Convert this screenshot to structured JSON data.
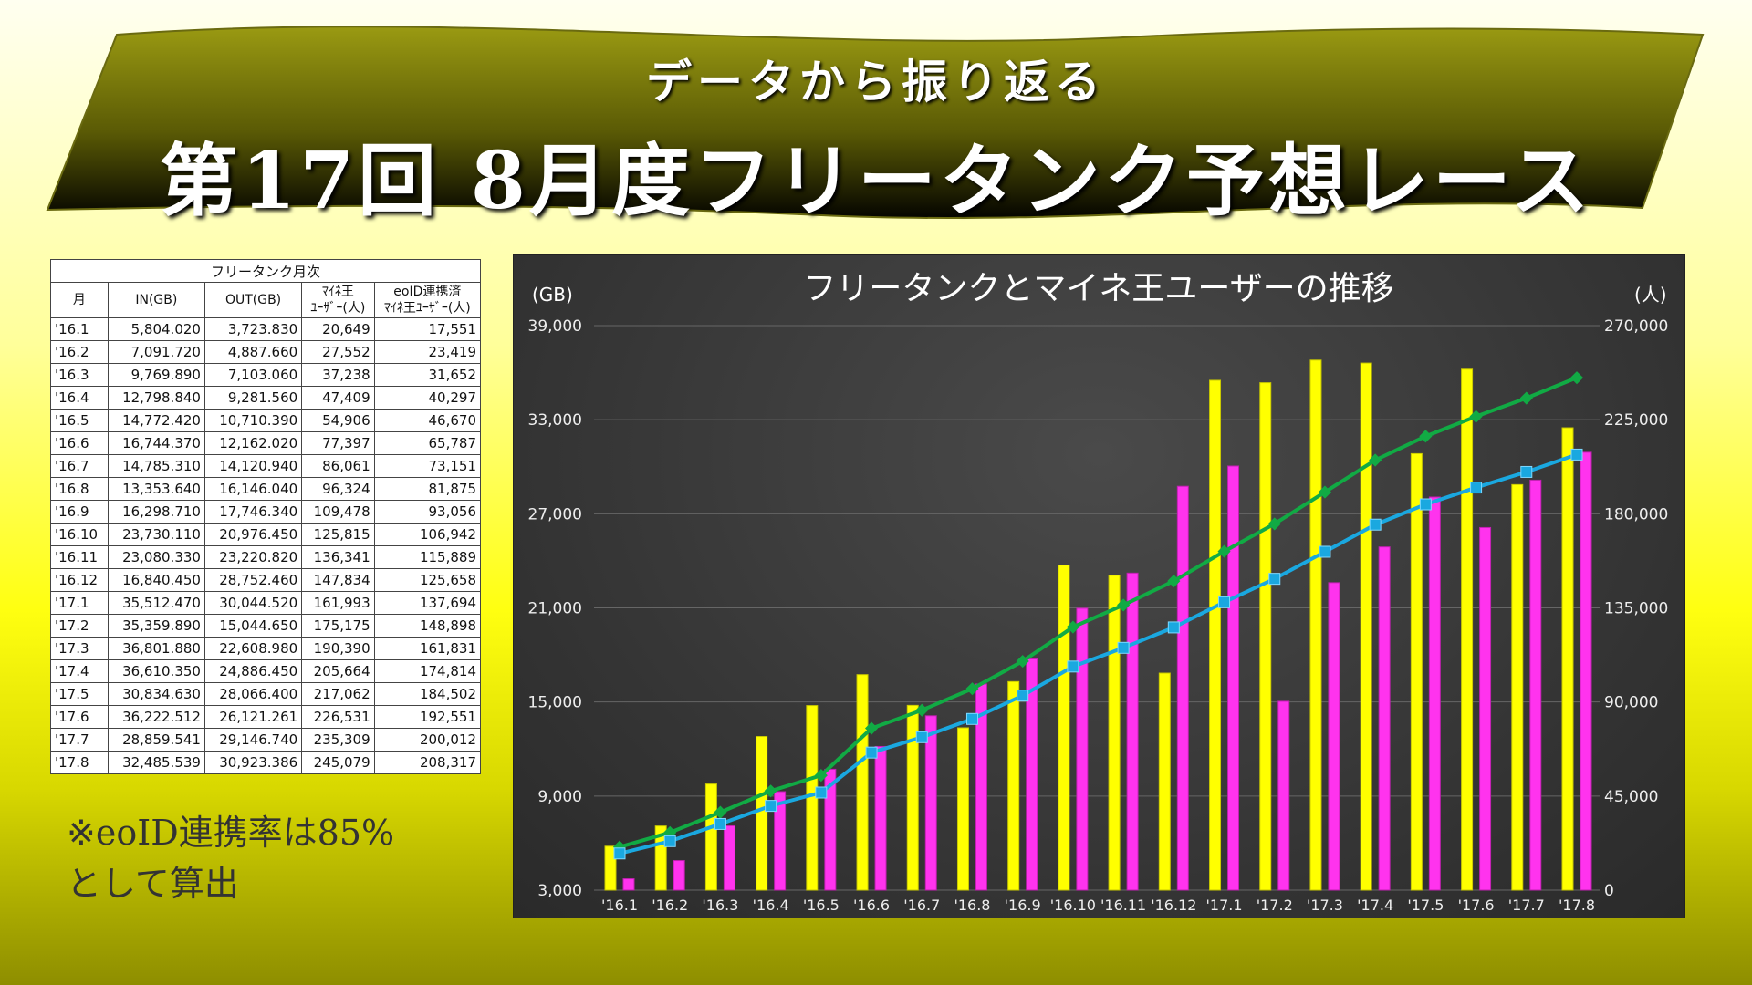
{
  "banner": {
    "subtitle": "データから振り返る",
    "title": "第17回 8月度フリータンク予想レース"
  },
  "table": {
    "caption": "フリータンク月次",
    "headers": [
      "月",
      "IN(GB)",
      "OUT(GB)",
      "ﾏｲﾈ王\nﾕｰｻﾞｰ(人)",
      "eoID連携済\nﾏｲﾈ王ﾕｰｻﾞｰ(人)"
    ],
    "rows": [
      [
        "'16.1",
        "5,804.020",
        "3,723.830",
        "20,649",
        "17,551"
      ],
      [
        "'16.2",
        "7,091.720",
        "4,887.660",
        "27,552",
        "23,419"
      ],
      [
        "'16.3",
        "9,769.890",
        "7,103.060",
        "37,238",
        "31,652"
      ],
      [
        "'16.4",
        "12,798.840",
        "9,281.560",
        "47,409",
        "40,297"
      ],
      [
        "'16.5",
        "14,772.420",
        "10,710.390",
        "54,906",
        "46,670"
      ],
      [
        "'16.6",
        "16,744.370",
        "12,162.020",
        "77,397",
        "65,787"
      ],
      [
        "'16.7",
        "14,785.310",
        "14,120.940",
        "86,061",
        "73,151"
      ],
      [
        "'16.8",
        "13,353.640",
        "16,146.040",
        "96,324",
        "81,875"
      ],
      [
        "'16.9",
        "16,298.710",
        "17,746.340",
        "109,478",
        "93,056"
      ],
      [
        "'16.10",
        "23,730.110",
        "20,976.450",
        "125,815",
        "106,942"
      ],
      [
        "'16.11",
        "23,080.330",
        "23,220.820",
        "136,341",
        "115,889"
      ],
      [
        "'16.12",
        "16,840.450",
        "28,752.460",
        "147,834",
        "125,658"
      ],
      [
        "'17.1",
        "35,512.470",
        "30,044.520",
        "161,993",
        "137,694"
      ],
      [
        "'17.2",
        "35,359.890",
        "15,044.650",
        "175,175",
        "148,898"
      ],
      [
        "'17.3",
        "36,801.880",
        "22,608.980",
        "190,390",
        "161,831"
      ],
      [
        "'17.4",
        "36,610.350",
        "24,886.450",
        "205,664",
        "174,814"
      ],
      [
        "'17.5",
        "30,834.630",
        "28,066.400",
        "217,062",
        "184,502"
      ],
      [
        "'17.6",
        "36,222.512",
        "26,121.261",
        "226,531",
        "192,551"
      ],
      [
        "'17.7",
        "28,859.541",
        "29,146.740",
        "235,309",
        "200,012"
      ],
      [
        "'17.8",
        "32,485.539",
        "30,923.386",
        "245,079",
        "208,317"
      ]
    ]
  },
  "note": {
    "line1": "※eoID連携率は85%",
    "line2": "として算出"
  },
  "chart_data": {
    "type": "bar+line",
    "title": "フリータンクとマイネ王ユーザーの推移",
    "ylabel_left": "(GB)",
    "ylabel_right": "(人)",
    "ylim_left": [
      3000,
      39000
    ],
    "ylim_right": [
      0,
      270000
    ],
    "yticks_left": [
      "3,000",
      "9,000",
      "15,000",
      "21,000",
      "27,000",
      "33,000",
      "39,000"
    ],
    "yticks_right": [
      "0",
      "45,000",
      "90,000",
      "135,000",
      "180,000",
      "225,000",
      "270,000"
    ],
    "grid": true,
    "categories": [
      "'16.1",
      "'16.2",
      "'16.3",
      "'16.4",
      "'16.5",
      "'16.6",
      "'16.7",
      "'16.8",
      "'16.9",
      "'16.10",
      "'16.11",
      "'16.12",
      "'17.1",
      "'17.2",
      "'17.3",
      "'17.4",
      "'17.5",
      "'17.6",
      "'17.7",
      "'17.8"
    ],
    "series": [
      {
        "axis": "left",
        "kind": "bar",
        "color": "#ffff00",
        "values": [
          5804.02,
          7091.72,
          9769.89,
          12798.84,
          14772.42,
          16744.37,
          14785.31,
          13353.64,
          16298.71,
          23730.11,
          23080.33,
          16840.45,
          35512.47,
          35359.89,
          36801.88,
          36610.35,
          30834.63,
          36222.512,
          28859.541,
          32485.539
        ]
      },
      {
        "axis": "left",
        "kind": "bar",
        "color": "#ff33ee",
        "values": [
          3723.83,
          4887.66,
          7103.06,
          9281.56,
          10710.39,
          12162.02,
          14120.94,
          16146.04,
          17746.34,
          20976.45,
          23220.82,
          28752.46,
          30044.52,
          15044.65,
          22608.98,
          24886.45,
          28066.4,
          26121.261,
          29146.74,
          30923.386
        ]
      },
      {
        "axis": "right",
        "kind": "line",
        "color": "#11aa44",
        "values": [
          20649,
          27552,
          37238,
          47409,
          54906,
          77397,
          86061,
          96324,
          109478,
          125815,
          136341,
          147834,
          161993,
          175175,
          190390,
          205664,
          217062,
          226531,
          235309,
          245079
        ]
      },
      {
        "axis": "right",
        "kind": "line",
        "color": "#1aa8e0",
        "values": [
          17551,
          23419,
          31652,
          40297,
          46670,
          65787,
          73151,
          81875,
          93056,
          106942,
          115889,
          125658,
          137694,
          148898,
          161831,
          174814,
          184502,
          192551,
          200012,
          208317
        ]
      }
    ]
  }
}
